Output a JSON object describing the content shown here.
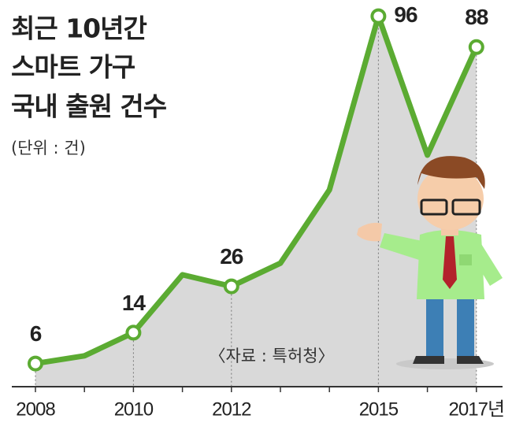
{
  "chart_data": {
    "type": "line",
    "title_lines": [
      "최근 10년간",
      "스마트 가구",
      "국내 출원 건수"
    ],
    "subtitle": "(단위 : 건)",
    "source": "〈자료 : 특허청〉",
    "categories": [
      "2008",
      null,
      "2010",
      null,
      "2012",
      null,
      null,
      "2015",
      null,
      "2017년"
    ],
    "values": [
      6,
      8,
      14,
      29,
      26,
      32,
      51,
      96,
      60,
      88
    ],
    "value_labels": [
      "6",
      null,
      "14",
      null,
      "26",
      null,
      null,
      "96",
      null,
      "88"
    ],
    "color": "#5bab32",
    "area_color": "#d9d9d9",
    "ylim": [
      0,
      100
    ]
  }
}
